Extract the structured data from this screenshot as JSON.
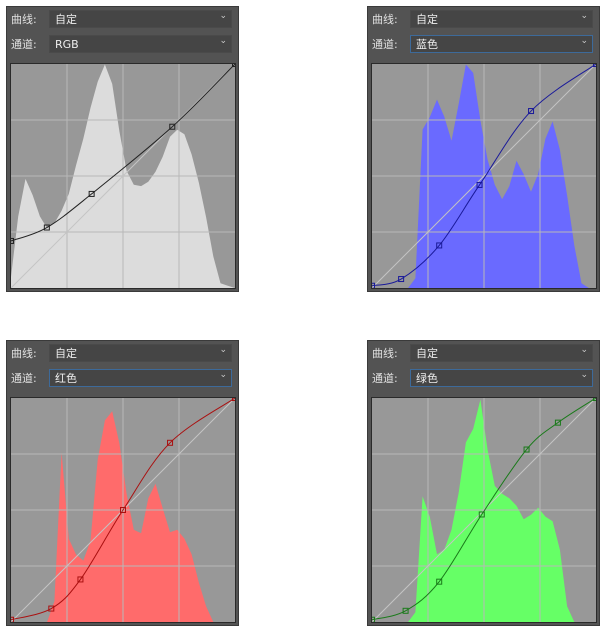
{
  "panels": [
    {
      "curve_label": "曲线:",
      "preset": "自定",
      "channel_label": "通道:",
      "channel": "RGB",
      "channel_active": false,
      "hist_color": "#dcdcdc",
      "curve_color": "#222222",
      "histogram": [
        0.05,
        0.3,
        0.47,
        0.42,
        0.35,
        0.3,
        0.3,
        0.33,
        0.4,
        0.55,
        0.7,
        0.85,
        0.95,
        1.0,
        0.9,
        0.7,
        0.55,
        0.5,
        0.48,
        0.47,
        0.5,
        0.58,
        0.7,
        0.75,
        0.72,
        0.6,
        0.45,
        0.3,
        0.15,
        0.05,
        0.01,
        0
      ],
      "points": [
        [
          0,
          0.21
        ],
        [
          0.16,
          0.27
        ],
        [
          0.36,
          0.42
        ],
        [
          0.72,
          0.72
        ],
        [
          1,
          1
        ]
      ]
    },
    {
      "curve_label": "曲线:",
      "preset": "自定",
      "channel_label": "通道:",
      "channel": "蓝色",
      "channel_active": true,
      "hist_color": "#6a6aff",
      "curve_color": "#1a1a9a",
      "histogram": [
        0,
        0,
        0,
        0,
        0,
        0,
        0.05,
        0.7,
        0.75,
        0.85,
        0.8,
        0.7,
        0.85,
        1.0,
        0.95,
        0.75,
        0.6,
        0.5,
        0.42,
        0.45,
        0.55,
        0.5,
        0.45,
        0.55,
        0.7,
        0.75,
        0.6,
        0.4,
        0.2,
        0.05,
        0,
        0
      ],
      "points": [
        [
          0,
          0.01
        ],
        [
          0.13,
          0.04
        ],
        [
          0.3,
          0.19
        ],
        [
          0.48,
          0.46
        ],
        [
          0.71,
          0.79
        ],
        [
          1,
          1
        ]
      ]
    },
    {
      "curve_label": "曲线:",
      "preset": "自定",
      "channel_label": "通道:",
      "channel": "红色",
      "channel_active": true,
      "hist_color": "#ff6b6b",
      "curve_color": "#aa1010",
      "histogram": [
        0,
        0,
        0,
        0,
        0,
        0,
        0.1,
        0.75,
        0.35,
        0.3,
        0.3,
        0.4,
        0.75,
        0.9,
        0.93,
        0.8,
        0.6,
        0.45,
        0.42,
        0.55,
        0.6,
        0.5,
        0.42,
        0.45,
        0.4,
        0.3,
        0.15,
        0.05,
        0,
        0,
        0,
        0
      ],
      "points": [
        [
          0,
          0.01
        ],
        [
          0.18,
          0.06
        ],
        [
          0.31,
          0.19
        ],
        [
          0.5,
          0.5
        ],
        [
          0.71,
          0.8
        ],
        [
          1,
          1
        ]
      ]
    },
    {
      "curve_label": "曲线:",
      "preset": "自定",
      "channel_label": "通道:",
      "channel": "绿色",
      "channel_active": true,
      "hist_color": "#66ff66",
      "curve_color": "#1a7a1a",
      "histogram": [
        0,
        0,
        0,
        0,
        0,
        0,
        0.05,
        0.55,
        0.45,
        0.3,
        0.35,
        0.45,
        0.6,
        0.8,
        0.85,
        1.0,
        0.8,
        0.65,
        0.6,
        0.55,
        0.5,
        0.45,
        0.5,
        0.55,
        0.5,
        0.45,
        0.3,
        0.05,
        0,
        0,
        0,
        0
      ],
      "points": [
        [
          0,
          0.01
        ],
        [
          0.15,
          0.05
        ],
        [
          0.3,
          0.18
        ],
        [
          0.49,
          0.48
        ],
        [
          0.69,
          0.77
        ],
        [
          0.83,
          0.89
        ],
        [
          1,
          1
        ]
      ]
    }
  ]
}
